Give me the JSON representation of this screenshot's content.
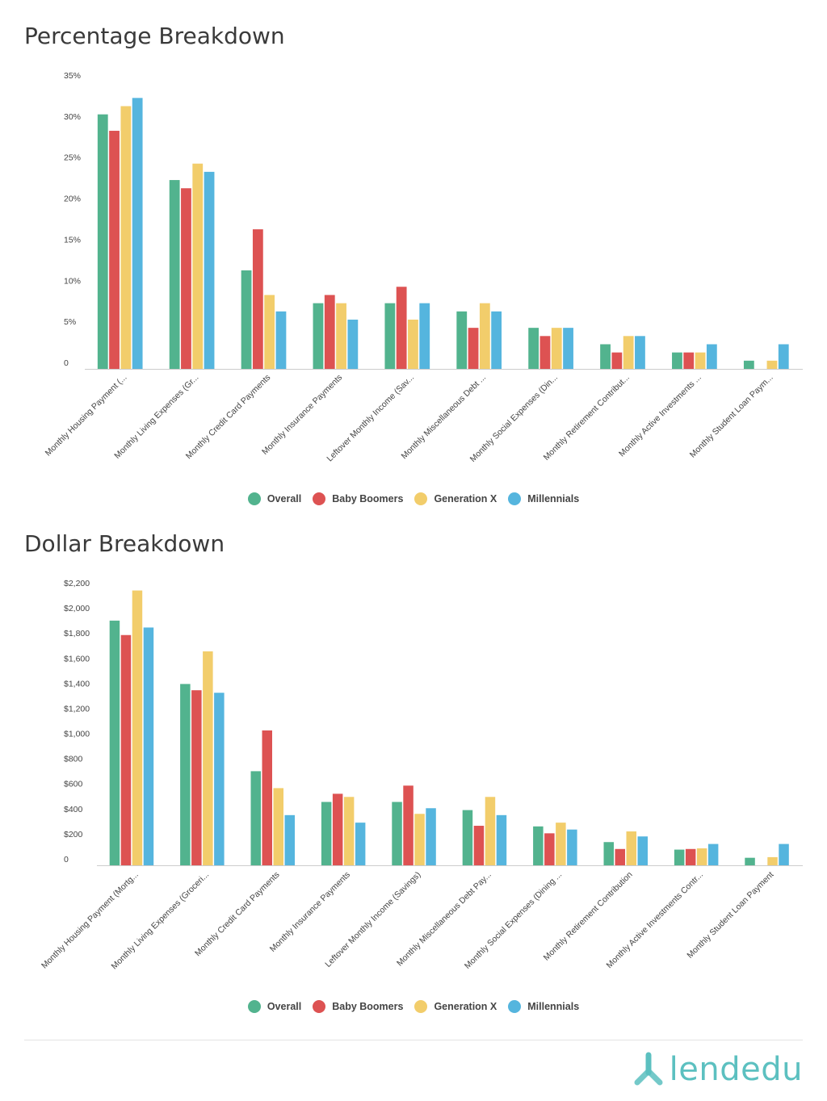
{
  "colors": {
    "Overall": "#52b38e",
    "Baby Boomers": "#dd5252",
    "Generation X": "#f2cd6b",
    "Millennials": "#55b5de",
    "logo": "#5cc0c0"
  },
  "legend": [
    "Overall",
    "Baby Boomers",
    "Generation X",
    "Millennials"
  ],
  "logo": {
    "text": "lendedu",
    "icon": "lendedu-logo-icon"
  },
  "chart_data": [
    {
      "type": "bar",
      "title": "Percentage Breakdown",
      "xlabel": "",
      "ylabel": "",
      "ylim": [
        0,
        35
      ],
      "yticks": [
        0,
        5,
        10,
        15,
        20,
        25,
        30,
        35
      ],
      "ytick_labels": [
        "0",
        "5%",
        "10%",
        "15%",
        "20%",
        "25%",
        "30%",
        "35%"
      ],
      "legend_position": "bottom",
      "grid": false,
      "categories": [
        "Monthly Housing Payment (...",
        "Monthly Living Expenses (Gr...",
        "Monthly Credit Card Payments",
        "Monthly Insurance Payments",
        "Leftover Monthly Income (Sav...",
        "Monthly Miscellaneous Debt ...",
        "Monthly Social Expenses (Din...",
        "Monthly Retirement Contribut...",
        "Monthly Active Investments ...",
        "Monthly Student Loan Paym..."
      ],
      "series": [
        {
          "name": "Overall",
          "values": [
            31,
            23,
            12,
            8,
            8,
            7,
            5,
            3,
            2,
            1
          ]
        },
        {
          "name": "Baby Boomers",
          "values": [
            29,
            22,
            17,
            9,
            10,
            5,
            4,
            2,
            2,
            0
          ]
        },
        {
          "name": "Generation X",
          "values": [
            32,
            25,
            9,
            8,
            6,
            8,
            5,
            4,
            2,
            1
          ]
        },
        {
          "name": "Millennials",
          "values": [
            33,
            24,
            7,
            6,
            8,
            7,
            5,
            4,
            3,
            3
          ]
        }
      ]
    },
    {
      "type": "bar",
      "title": "Dollar Breakdown",
      "xlabel": "",
      "ylabel": "",
      "ylim": [
        0,
        2200
      ],
      "yticks": [
        0,
        200,
        400,
        600,
        800,
        1000,
        1200,
        1400,
        1600,
        1800,
        2000,
        2200
      ],
      "ytick_labels": [
        "0",
        "$200",
        "$400",
        "$600",
        "$800",
        "$1,000",
        "$1,200",
        "$1,400",
        "$1,600",
        "$1,800",
        "$2,000",
        "$2,200"
      ],
      "legend_position": "bottom",
      "grid": false,
      "categories": [
        "Monthly Housing Payment (Mortg...",
        "Monthly Living Expenses (Groceri...",
        "Monthly Credit Card Payments",
        "Monthly Insurance Payments",
        "Leftover Monthly Income (Savings)",
        "Monthly Miscellaneous Debt Pay...",
        "Monthly Social Expenses (Dining ...",
        "Monthly Retirement Contribution",
        "Monthly Active Investments Contr...",
        "Monthly Student Loan Payment"
      ],
      "series": [
        {
          "name": "Overall",
          "values": [
            1950,
            1445,
            750,
            505,
            505,
            440,
            310,
            185,
            125,
            60
          ]
        },
        {
          "name": "Baby Boomers",
          "values": [
            1835,
            1395,
            1075,
            570,
            635,
            315,
            255,
            130,
            130,
            0
          ]
        },
        {
          "name": "Generation X",
          "values": [
            2190,
            1705,
            615,
            545,
            410,
            545,
            340,
            270,
            135,
            65
          ]
        },
        {
          "name": "Millennials",
          "values": [
            1895,
            1375,
            400,
            340,
            455,
            400,
            285,
            230,
            170,
            170
          ]
        }
      ]
    }
  ]
}
